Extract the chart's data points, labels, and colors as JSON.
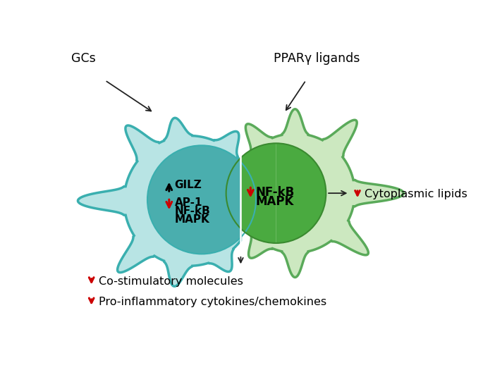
{
  "bg_color": "#ffffff",
  "cell_left_body_fill": "#b8e4e4",
  "cell_left_body_edge": "#3aafaf",
  "cell_right_body_fill": "#cce8c0",
  "cell_right_body_edge": "#5aaa5a",
  "nucleus_left_fill": "#4aaeae",
  "nucleus_left_edge": "#2a9090",
  "nucleus_right_fill": "#4aaa40",
  "nucleus_right_edge": "#3a8a30",
  "arrow_up_color": "#111111",
  "arrow_down_color": "#cc0000",
  "black_arrow_color": "#222222",
  "label_GCs": "GCs",
  "label_PPARy": "PPARγ ligands",
  "label_GILZ": "GILZ",
  "label_AP1": "AP-1",
  "label_NFkB_left": "NF-kB",
  "label_MAPK_left": "MAPK",
  "label_NFkB_right": "NF-kB",
  "label_MAPK_right": "MAPK",
  "label_cytolipids": "Cytoplasmic lipids",
  "label_costim": "Co-stimulatory molecules",
  "label_proinflam": "Pro-inflammatory cytokines/chemokines",
  "fontsize_inside": 11,
  "fontsize_outside": 11.5
}
